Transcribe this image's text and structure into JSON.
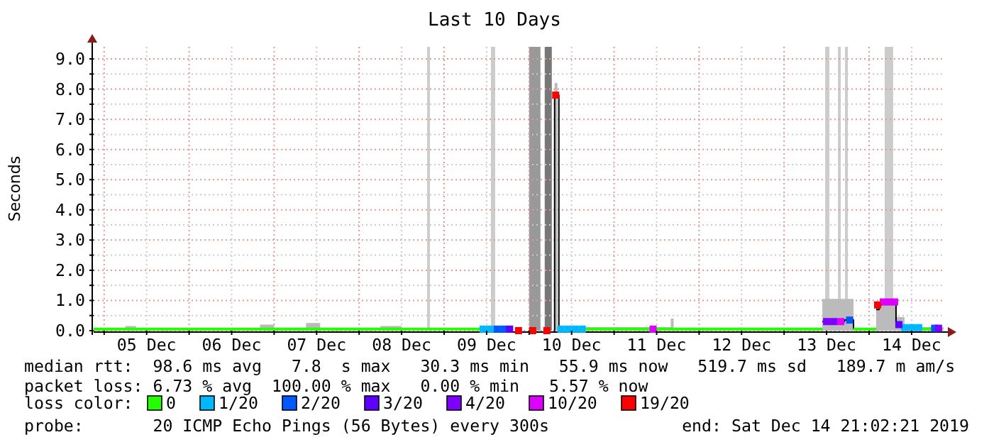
{
  "chart_data": {
    "type": "step",
    "title": "Last 10 Days",
    "ylabel": "Seconds",
    "legend_title": "loss color:",
    "legend": "bottom",
    "grid": true,
    "xlim": [
      "2019-12-04T21:02",
      "2019-12-14T21:02"
    ],
    "xticks": [
      {
        "value": "2019-12-05T00:00",
        "label": null
      },
      {
        "value": "2019-12-05T12:00",
        "label": "05 Dec"
      },
      {
        "value": "2019-12-06T00:00",
        "label": null
      },
      {
        "value": "2019-12-06T12:00",
        "label": "06 Dec"
      },
      {
        "value": "2019-12-07T00:00",
        "label": null
      },
      {
        "value": "2019-12-07T12:00",
        "label": "07 Dec"
      },
      {
        "value": "2019-12-08T00:00",
        "label": null
      },
      {
        "value": "2019-12-08T12:00",
        "label": "08 Dec"
      },
      {
        "value": "2019-12-09T00:00",
        "label": null
      },
      {
        "value": "2019-12-09T12:00",
        "label": "09 Dec"
      },
      {
        "value": "2019-12-10T00:00",
        "label": null
      },
      {
        "value": "2019-12-10T12:00",
        "label": "10 Dec"
      },
      {
        "value": "2019-12-11T00:00",
        "label": null
      },
      {
        "value": "2019-12-11T12:00",
        "label": "11 Dec"
      },
      {
        "value": "2019-12-12T00:00",
        "label": null
      },
      {
        "value": "2019-12-12T12:00",
        "label": "12 Dec"
      },
      {
        "value": "2019-12-13T00:00",
        "label": null
      },
      {
        "value": "2019-12-13T12:00",
        "label": "13 Dec"
      },
      {
        "value": "2019-12-14T00:00",
        "label": null
      },
      {
        "value": "2019-12-14T12:00",
        "label": "14 Dec"
      }
    ],
    "ylim": [
      0,
      9.4
    ],
    "yticks": [
      {
        "value": 0,
        "label": "0.0"
      },
      {
        "value": 0.5,
        "label": null
      },
      {
        "value": 1,
        "label": "1.0"
      },
      {
        "value": 1.5,
        "label": null
      },
      {
        "value": 2,
        "label": "2.0"
      },
      {
        "value": 2.5,
        "label": null
      },
      {
        "value": 3,
        "label": "3.0"
      },
      {
        "value": 3.5,
        "label": null
      },
      {
        "value": 4,
        "label": "4.0"
      },
      {
        "value": 4.5,
        "label": null
      },
      {
        "value": 5,
        "label": "5.0"
      },
      {
        "value": 5.5,
        "label": null
      },
      {
        "value": 6,
        "label": "6.0"
      },
      {
        "value": 6.5,
        "label": null
      },
      {
        "value": 7,
        "label": "7.0"
      },
      {
        "value": 7.5,
        "label": null
      },
      {
        "value": 8,
        "label": "8.0"
      },
      {
        "value": 8.5,
        "label": null
      },
      {
        "value": 9,
        "label": "9.0"
      }
    ],
    "bands": [
      {
        "axis": "x",
        "from": "2019-12-08T19:12",
        "to": "2019-12-08T20:00",
        "color": "#cccccc"
      },
      {
        "axis": "x",
        "from": "2019-12-09T13:12",
        "to": "2019-12-09T14:24",
        "color": "#cccccc"
      },
      {
        "axis": "x",
        "from": "2019-12-10T00:00",
        "to": "2019-12-10T03:12",
        "color": "#999999"
      },
      {
        "axis": "x",
        "from": "2019-12-10T04:24",
        "to": "2019-12-10T06:24",
        "color": "#777777"
      },
      {
        "axis": "x",
        "from": "2019-12-13T11:36",
        "to": "2019-12-13T12:48",
        "color": "#cccccc"
      },
      {
        "axis": "x",
        "from": "2019-12-13T15:12",
        "to": "2019-12-13T16:00",
        "color": "#cccccc"
      },
      {
        "axis": "x",
        "from": "2019-12-13T17:12",
        "to": "2019-12-13T18:00",
        "color": "#cccccc"
      },
      {
        "axis": "x",
        "from": "2019-12-14T04:24",
        "to": "2019-12-14T06:48",
        "color": "#cccccc"
      }
    ],
    "series": [
      {
        "type": "area",
        "color": "#bbbbbb",
        "x": [
          "2019-12-04T21:02",
          "2019-12-05T06:00",
          "2019-12-05T09:00",
          "2019-12-06T20:00",
          "2019-12-07T00:00",
          "2019-12-07T09:00",
          "2019-12-07T13:00",
          "2019-12-08T06:00",
          "2019-12-08T12:00",
          "2019-12-09T19:36",
          "2019-12-10T07:12",
          "2019-12-10T08:00",
          "2019-12-11T16:00",
          "2019-12-11T16:48",
          "2019-12-13T10:48",
          "2019-12-13T19:36",
          "2019-12-14T02:00",
          "2019-12-14T07:36",
          "2019-12-14T10:00",
          "2019-12-14T21:02"
        ],
        "values": [
          0.08,
          0.15,
          0.08,
          0.2,
          0.1,
          0.25,
          0.1,
          0.15,
          0.1,
          null,
          8.2,
          0.12,
          0.4,
          0.1,
          1.05,
          0.1,
          0.95,
          0.45,
          0.12,
          0.1
        ]
      },
      {
        "color": "#000000",
        "x": [
          "2019-12-10T07:00",
          "2019-12-10T07:12",
          "2019-12-10T08:24",
          "2019-12-10T08:30",
          "2019-12-13T10:48",
          "2019-12-13T17:00",
          "2019-12-13T19:36",
          "2019-12-13T19:42",
          "2019-12-14T02:00",
          "2019-12-14T02:48",
          "2019-12-14T03:36",
          "2019-12-14T07:36",
          "2019-12-14T09:12",
          "2019-12-14T14:48"
        ],
        "values": [
          0,
          7.8,
          0.05,
          null,
          0.3,
          0.35,
          0.05,
          null,
          0.7,
          0.85,
          0.95,
          0.2,
          0.1,
          0.05
        ]
      },
      {
        "type": "line",
        "name": "0",
        "color": "#26ff00",
        "x": [
          "2019-12-04T21:02",
          "2019-12-09T10:00"
        ],
        "values": [
          0.05,
          0.05
        ]
      },
      {
        "type": "line",
        "color": "#26ff00",
        "x": [
          "2019-12-10T16:00",
          "2019-12-11T10:00"
        ],
        "values": [
          0.05,
          0.05
        ]
      },
      {
        "type": "line",
        "color": "#26ff00",
        "x": [
          "2019-12-11T12:00",
          "2019-12-13T10:48"
        ],
        "values": [
          0.05,
          0.05
        ]
      },
      {
        "type": "line",
        "color": "#26ff00",
        "x": [
          "2019-12-13T19:36",
          "2019-12-14T02:00"
        ],
        "values": [
          0.05,
          0.05
        ]
      },
      {
        "type": "line",
        "color": "#26ff00",
        "x": [
          "2019-12-14T14:48",
          "2019-12-14T18:00"
        ],
        "values": [
          0.05,
          0.05
        ]
      },
      {
        "type": "scatter",
        "marker": "square",
        "name": "1/20",
        "color": "#00b8ff",
        "x": [
          "2019-12-09T11:00",
          "2019-12-09T13:00",
          "2019-12-10T09:00",
          "2019-12-10T11:00",
          "2019-12-10T13:00",
          "2019-12-10T15:00",
          "2019-12-14T10:00",
          "2019-12-14T12:00",
          "2019-12-14T14:00"
        ],
        "values": [
          0.05,
          0.05,
          0.05,
          0.05,
          0.05,
          0.05,
          0.1,
          0.1,
          0.1
        ]
      },
      {
        "type": "scatter",
        "marker": "square",
        "name": "2/20",
        "color": "#0059ff",
        "x": [
          "2019-12-09T15:00",
          "2019-12-09T17:00",
          "2019-12-13T18:30",
          "2019-12-14T18:30"
        ],
        "values": [
          0.05,
          0.05,
          0.35,
          0.08
        ]
      },
      {
        "type": "scatter",
        "marker": "square",
        "name": "3/20",
        "color": "#5e00ff",
        "x": [
          "2019-12-09T18:30",
          "2019-12-14T08:24"
        ],
        "values": [
          0.05,
          0.2
        ]
      },
      {
        "type": "scatter",
        "marker": "square",
        "name": "4/20",
        "color": "#7e00ff",
        "x": [
          "2019-12-13T12:00",
          "2019-12-13T14:00",
          "2019-12-14T19:36"
        ],
        "values": [
          0.3,
          0.3,
          0.08
        ]
      },
      {
        "type": "scatter",
        "marker": "square",
        "name": "10/20",
        "color": "#dd00ff",
        "x": [
          "2019-12-11T11:00",
          "2019-12-13T16:00",
          "2019-12-14T04:00",
          "2019-12-14T05:36",
          "2019-12-14T07:12"
        ],
        "values": [
          0.05,
          0.3,
          0.95,
          0.95,
          0.95
        ]
      },
      {
        "type": "scatter",
        "marker": "square",
        "name": "19/20",
        "color": "#ff0000",
        "x": [
          "2019-12-09T21:00",
          "2019-12-10T01:00",
          "2019-12-10T05:00",
          "2019-12-10T07:30",
          "2019-12-14T02:24"
        ],
        "values": [
          0,
          0,
          0,
          7.8,
          0.85
        ]
      }
    ],
    "annotations": [
      "median rtt:  98.6 ms avg   7.8  s max   30.3 ms min   55.9 ms now   519.7 ms sd   189.7 m am/s",
      "packet loss: 6.73 % avg  100.00 % max   0.00 % min   5.57 % now",
      "probe:       20 ICMP Echo Pings (56 Bytes) every 300s",
      "end: Sat Dec 14 21:02:21 2019"
    ]
  }
}
